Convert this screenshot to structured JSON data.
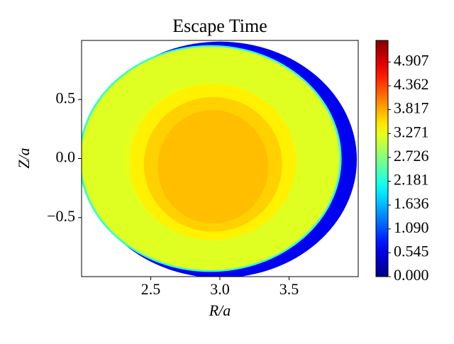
{
  "chart_data": {
    "type": "contour",
    "title": "Escape Time",
    "xlabel": "R/a",
    "ylabel": "Z/a",
    "xlim": [
      2.0,
      4.0
    ],
    "ylim": [
      -1.0,
      1.0
    ],
    "xticks": [
      2.5,
      {
        "value": 3.0,
        "label": "3.0"
      },
      3.5
    ],
    "yticks": [
      {
        "value": -0.5,
        "label": "−0.5"
      },
      {
        "value": 0.0,
        "label": "0.0"
      },
      0.5
    ],
    "colormap": "jet",
    "clim": [
      0,
      5.4
    ],
    "cticks": [
      {
        "value": 0,
        "label": "0.000"
      },
      0.545,
      {
        "value": 1.09,
        "label": "1.090"
      },
      1.636,
      2.181,
      2.726,
      3.271,
      3.817,
      4.362,
      4.907
    ],
    "contours": [
      {
        "cx": 3.0,
        "cy": -0.01,
        "rx": 0.99,
        "ry": 1.0,
        "value": 0.6
      },
      {
        "cx": 2.93,
        "cy": 0.0,
        "rx": 0.95,
        "ry": 0.96,
        "value": 2.3
      },
      {
        "cx": 2.93,
        "cy": 0.0,
        "rx": 0.935,
        "ry": 0.945,
        "value": 3.2
      },
      {
        "cx": 2.93,
        "cy": -0.01,
        "rx": 0.62,
        "ry": 0.65,
        "value": 3.25
      },
      {
        "cx": 2.95,
        "cy": -0.03,
        "rx": 0.6,
        "ry": 0.66,
        "value": 3.45
      },
      {
        "cx": 2.95,
        "cy": -0.05,
        "rx": 0.5,
        "ry": 0.57,
        "value": 3.62
      },
      {
        "cx": 2.95,
        "cy": -0.07,
        "rx": 0.4,
        "ry": 0.48,
        "value": 3.72
      }
    ]
  }
}
